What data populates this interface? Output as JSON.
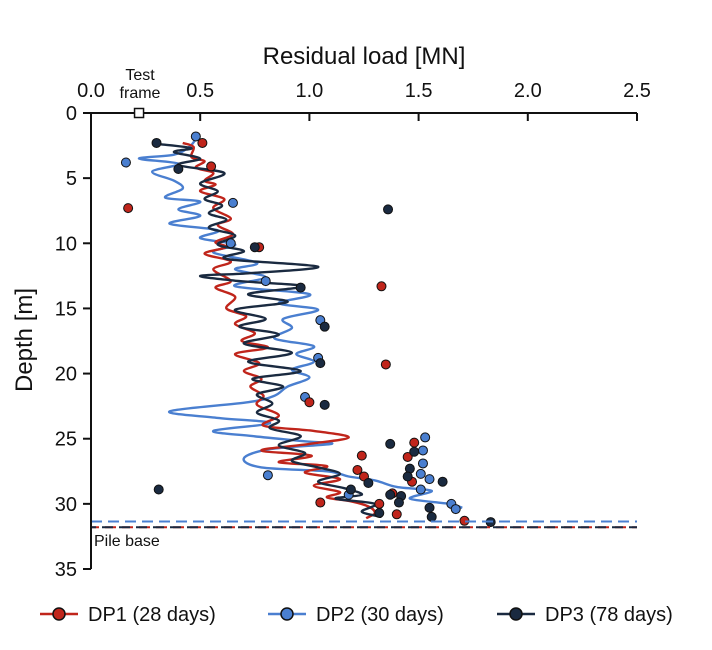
{
  "chart_data": {
    "type": "line",
    "xlabel": "Residual load [MN]",
    "ylabel": "Depth [m]",
    "xlim": [
      0,
      2.5
    ],
    "ylim": [
      0,
      35
    ],
    "y_inverted": true,
    "x_axis_position": "top",
    "x_ticks": [
      "0.0",
      "0.5",
      "1.0",
      "1.5",
      "2.0",
      "2.5"
    ],
    "y_ticks": [
      "0",
      "5",
      "10",
      "15",
      "20",
      "25",
      "30",
      "35"
    ],
    "annotations": {
      "test_frame_line1": "Test",
      "test_frame_line2": "frame",
      "test_frame_point": {
        "x": 0.22,
        "y": 0
      },
      "pile_base_label": "Pile base",
      "pile_base_depths": [
        {
          "depth": 31.35,
          "color": "#4a7fd0"
        },
        {
          "depth": 31.8,
          "color": "#c0251b"
        },
        {
          "depth": 31.8,
          "color": "#1a2a40"
        }
      ]
    },
    "series": [
      {
        "name": "DP1 (28 days)",
        "color": "#c0251b",
        "line": [
          [
            0.42,
            2.3
          ],
          [
            0.47,
            2.6
          ],
          [
            0.46,
            3.4
          ],
          [
            0.52,
            3.7
          ],
          [
            0.48,
            4.2
          ],
          [
            0.56,
            4.6
          ],
          [
            0.52,
            5.2
          ],
          [
            0.57,
            5.5
          ],
          [
            0.5,
            6.0
          ],
          [
            0.61,
            6.6
          ],
          [
            0.56,
            7.3
          ],
          [
            0.64,
            8.1
          ],
          [
            0.58,
            8.6
          ],
          [
            0.65,
            9.3
          ],
          [
            0.57,
            9.9
          ],
          [
            0.62,
            10.3
          ],
          [
            0.52,
            10.8
          ],
          [
            0.64,
            11.4
          ],
          [
            0.56,
            12.0
          ],
          [
            0.64,
            12.9
          ],
          [
            0.57,
            13.4
          ],
          [
            0.66,
            14.1
          ],
          [
            0.62,
            15.0
          ],
          [
            0.71,
            15.6
          ],
          [
            0.66,
            16.2
          ],
          [
            0.75,
            16.9
          ],
          [
            0.69,
            17.5
          ],
          [
            0.81,
            18.0
          ],
          [
            0.66,
            18.5
          ],
          [
            0.77,
            19.2
          ],
          [
            0.7,
            19.8
          ],
          [
            0.78,
            20.4
          ],
          [
            0.73,
            21.0
          ],
          [
            0.79,
            21.7
          ],
          [
            0.76,
            22.4
          ],
          [
            0.86,
            23.2
          ],
          [
            0.79,
            24.0
          ],
          [
            1.02,
            24.4
          ],
          [
            1.18,
            24.9
          ],
          [
            1.0,
            25.4
          ],
          [
            0.78,
            25.9
          ],
          [
            1.01,
            26.3
          ],
          [
            0.86,
            26.8
          ],
          [
            1.08,
            27.1
          ],
          [
            0.98,
            27.6
          ],
          [
            1.14,
            28.1
          ],
          [
            1.02,
            28.6
          ],
          [
            1.14,
            29.1
          ],
          [
            1.08,
            29.5
          ],
          [
            1.19,
            29.8
          ],
          [
            1.27,
            30.2
          ],
          [
            1.3,
            30.7
          ],
          [
            1.26,
            31.1
          ]
        ],
        "markers": [
          [
            0.51,
            2.3
          ],
          [
            0.55,
            4.1
          ],
          [
            0.17,
            7.3
          ],
          [
            0.77,
            10.3
          ],
          [
            1.33,
            13.3
          ],
          [
            1.35,
            19.3
          ],
          [
            1.0,
            22.2
          ],
          [
            1.48,
            25.3
          ],
          [
            1.24,
            26.3
          ],
          [
            1.45,
            26.4
          ],
          [
            1.22,
            27.4
          ],
          [
            1.25,
            27.9
          ],
          [
            1.47,
            28.3
          ],
          [
            1.38,
            29.2
          ],
          [
            1.05,
            29.9
          ],
          [
            1.32,
            30.0
          ],
          [
            1.4,
            30.8
          ],
          [
            1.71,
            31.3
          ]
        ]
      },
      {
        "name": "DP2 (30 days)",
        "color": "#4a7fd0",
        "line": [
          [
            0.48,
            2.0
          ],
          [
            0.45,
            2.6
          ],
          [
            0.38,
            3.2
          ],
          [
            0.22,
            3.5
          ],
          [
            0.4,
            3.9
          ],
          [
            0.28,
            4.5
          ],
          [
            0.38,
            5.2
          ],
          [
            0.42,
            5.8
          ],
          [
            0.34,
            6.5
          ],
          [
            0.5,
            6.8
          ],
          [
            0.4,
            7.4
          ],
          [
            0.5,
            7.9
          ],
          [
            0.36,
            8.5
          ],
          [
            0.58,
            9.0
          ],
          [
            0.5,
            9.6
          ],
          [
            0.66,
            10.1
          ],
          [
            0.56,
            10.7
          ],
          [
            0.76,
            11.5
          ],
          [
            0.66,
            12.0
          ],
          [
            0.8,
            12.6
          ],
          [
            0.66,
            13.3
          ],
          [
            1.0,
            13.9
          ],
          [
            0.86,
            14.6
          ],
          [
            1.04,
            15.1
          ],
          [
            0.88,
            15.8
          ],
          [
            0.92,
            16.5
          ],
          [
            0.84,
            17.3
          ],
          [
            1.02,
            17.9
          ],
          [
            0.94,
            18.5
          ],
          [
            1.02,
            19.1
          ],
          [
            0.92,
            19.7
          ],
          [
            1.0,
            20.3
          ],
          [
            0.9,
            21.0
          ],
          [
            0.84,
            21.7
          ],
          [
            0.72,
            22.2
          ],
          [
            0.36,
            22.9
          ],
          [
            0.58,
            23.4
          ],
          [
            0.82,
            23.8
          ],
          [
            0.56,
            24.4
          ],
          [
            0.74,
            24.8
          ],
          [
            0.98,
            25.2
          ],
          [
            1.1,
            25.4
          ],
          [
            0.82,
            25.8
          ],
          [
            0.7,
            26.5
          ],
          [
            0.78,
            27.2
          ],
          [
            1.08,
            27.5
          ],
          [
            1.18,
            27.9
          ],
          [
            1.3,
            28.2
          ],
          [
            1.4,
            28.7
          ],
          [
            1.56,
            29.0
          ],
          [
            1.46,
            29.6
          ],
          [
            1.64,
            30.0
          ],
          [
            1.7,
            30.3
          ]
        ],
        "markers": [
          [
            0.48,
            1.8
          ],
          [
            0.16,
            3.8
          ],
          [
            0.65,
            6.9
          ],
          [
            0.64,
            10.0
          ],
          [
            0.8,
            12.9
          ],
          [
            1.05,
            15.9
          ],
          [
            1.04,
            18.8
          ],
          [
            0.98,
            21.8
          ],
          [
            1.53,
            24.9
          ],
          [
            1.52,
            25.9
          ],
          [
            1.52,
            26.9
          ],
          [
            1.51,
            27.7
          ],
          [
            1.55,
            28.1
          ],
          [
            1.51,
            28.9
          ],
          [
            1.18,
            29.3
          ],
          [
            1.65,
            30.0
          ],
          [
            1.67,
            30.4
          ],
          [
            0.81,
            27.8
          ]
        ]
      },
      {
        "name": "DP3 (78 days)",
        "color": "#1a2a40",
        "line": [
          [
            0.32,
            2.4
          ],
          [
            0.46,
            2.7
          ],
          [
            0.38,
            3.0
          ],
          [
            0.5,
            3.5
          ],
          [
            0.4,
            4.0
          ],
          [
            0.61,
            4.6
          ],
          [
            0.5,
            5.4
          ],
          [
            0.58,
            6.0
          ],
          [
            0.52,
            6.6
          ],
          [
            0.6,
            7.1
          ],
          [
            0.54,
            7.7
          ],
          [
            0.62,
            8.2
          ],
          [
            0.54,
            8.8
          ],
          [
            0.66,
            9.4
          ],
          [
            0.58,
            10.1
          ],
          [
            0.7,
            10.6
          ],
          [
            0.62,
            11.2
          ],
          [
            1.04,
            11.8
          ],
          [
            0.72,
            12.3
          ],
          [
            0.5,
            12.5
          ],
          [
            0.68,
            12.9
          ],
          [
            0.97,
            13.3
          ],
          [
            0.72,
            13.9
          ],
          [
            0.9,
            14.5
          ],
          [
            0.66,
            15.1
          ],
          [
            0.8,
            15.8
          ],
          [
            0.68,
            16.4
          ],
          [
            0.86,
            17.0
          ],
          [
            0.7,
            17.7
          ],
          [
            0.92,
            18.4
          ],
          [
            0.72,
            19.1
          ],
          [
            0.96,
            19.8
          ],
          [
            0.74,
            20.4
          ],
          [
            0.88,
            21.0
          ],
          [
            0.76,
            21.6
          ],
          [
            0.83,
            22.3
          ],
          [
            0.76,
            23.0
          ],
          [
            0.86,
            23.6
          ],
          [
            0.82,
            24.2
          ],
          [
            0.96,
            24.8
          ],
          [
            0.86,
            25.5
          ],
          [
            0.98,
            26.1
          ],
          [
            0.92,
            26.7
          ],
          [
            1.04,
            27.2
          ],
          [
            1.14,
            27.7
          ],
          [
            1.04,
            28.3
          ],
          [
            1.16,
            28.8
          ],
          [
            1.24,
            29.3
          ],
          [
            1.12,
            29.6
          ],
          [
            1.3,
            30.0
          ],
          [
            1.24,
            30.6
          ],
          [
            1.33,
            31.0
          ]
        ],
        "markers": [
          [
            0.3,
            2.3
          ],
          [
            0.4,
            4.3
          ],
          [
            1.36,
            7.4
          ],
          [
            0.75,
            10.3
          ],
          [
            0.96,
            13.4
          ],
          [
            1.07,
            16.4
          ],
          [
            1.05,
            19.2
          ],
          [
            1.07,
            22.4
          ],
          [
            1.37,
            25.4
          ],
          [
            1.48,
            26.0
          ],
          [
            1.46,
            27.3
          ],
          [
            1.45,
            27.9
          ],
          [
            1.61,
            28.3
          ],
          [
            1.37,
            29.3
          ],
          [
            1.42,
            29.4
          ],
          [
            1.41,
            29.9
          ],
          [
            1.55,
            30.3
          ],
          [
            1.56,
            31.0
          ],
          [
            1.83,
            31.4
          ],
          [
            0.31,
            28.9
          ],
          [
            1.27,
            28.4
          ],
          [
            1.19,
            28.9
          ],
          [
            1.32,
            30.7
          ]
        ]
      }
    ]
  }
}
